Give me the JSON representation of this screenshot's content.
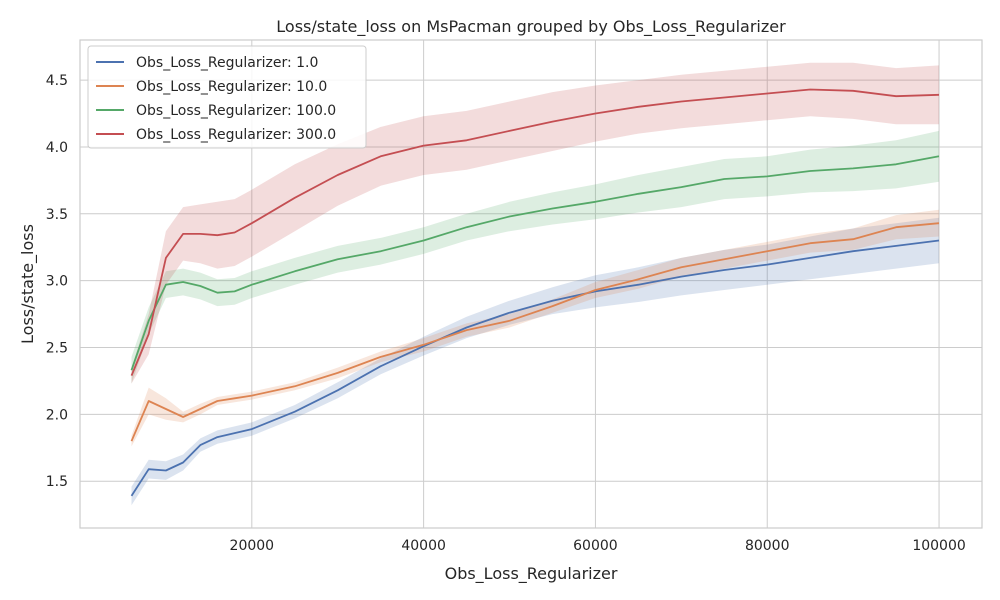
{
  "chart_data": {
    "type": "line",
    "title": "Loss/state_loss on MsPacman grouped by Obs_Loss_Regularizer",
    "xlabel": "Obs_Loss_Regularizer",
    "ylabel": "Loss/state_loss",
    "xlim": [
      0,
      105000
    ],
    "ylim": [
      1.15,
      4.8
    ],
    "xticks": [
      20000,
      40000,
      60000,
      80000,
      100000
    ],
    "xtick_labels": [
      "20000",
      "40000",
      "60000",
      "80000",
      "100000"
    ],
    "yticks": [
      1.5,
      2.0,
      2.5,
      3.0,
      3.5,
      4.0,
      4.5
    ],
    "ytick_labels": [
      "1.5",
      "2.0",
      "2.5",
      "3.0",
      "3.5",
      "4.0",
      "4.5"
    ],
    "grid": true,
    "legend_position": "top-left",
    "x": [
      6000,
      8000,
      10000,
      12000,
      14000,
      16000,
      18000,
      20000,
      25000,
      30000,
      35000,
      40000,
      45000,
      50000,
      55000,
      60000,
      65000,
      70000,
      75000,
      80000,
      85000,
      90000,
      95000,
      100000
    ],
    "series": [
      {
        "name": "Obs_Loss_Regularizer: 1.0",
        "color": "#4c72b0",
        "values": [
          1.39,
          1.59,
          1.58,
          1.64,
          1.77,
          1.83,
          1.86,
          1.89,
          2.02,
          2.18,
          2.36,
          2.51,
          2.65,
          2.76,
          2.85,
          2.92,
          2.97,
          3.03,
          3.08,
          3.12,
          3.17,
          3.22,
          3.26,
          3.3
        ],
        "ci": [
          0.07,
          0.07,
          0.07,
          0.06,
          0.05,
          0.05,
          0.05,
          0.05,
          0.05,
          0.06,
          0.06,
          0.07,
          0.08,
          0.09,
          0.1,
          0.12,
          0.13,
          0.14,
          0.15,
          0.15,
          0.16,
          0.17,
          0.17,
          0.17
        ]
      },
      {
        "name": "Obs_Loss_Regularizer: 10.0",
        "color": "#dd8452",
        "values": [
          1.8,
          2.1,
          2.04,
          1.98,
          2.04,
          2.1,
          2.12,
          2.14,
          2.21,
          2.31,
          2.43,
          2.52,
          2.63,
          2.7,
          2.81,
          2.93,
          3.01,
          3.1,
          3.16,
          3.22,
          3.28,
          3.31,
          3.4,
          3.43
        ],
        "ci": [
          0.04,
          0.1,
          0.08,
          0.04,
          0.04,
          0.03,
          0.03,
          0.03,
          0.03,
          0.04,
          0.04,
          0.05,
          0.05,
          0.05,
          0.05,
          0.06,
          0.07,
          0.07,
          0.07,
          0.07,
          0.07,
          0.08,
          0.09,
          0.1
        ]
      },
      {
        "name": "Obs_Loss_Regularizer: 100.0",
        "color": "#55a868",
        "values": [
          2.33,
          2.7,
          2.97,
          2.99,
          2.96,
          2.91,
          2.92,
          2.97,
          3.07,
          3.16,
          3.22,
          3.3,
          3.4,
          3.48,
          3.54,
          3.59,
          3.65,
          3.7,
          3.76,
          3.78,
          3.82,
          3.84,
          3.87,
          3.93
        ],
        "ci": [
          0.1,
          0.1,
          0.1,
          0.1,
          0.1,
          0.1,
          0.1,
          0.1,
          0.1,
          0.1,
          0.1,
          0.1,
          0.1,
          0.11,
          0.12,
          0.13,
          0.14,
          0.15,
          0.15,
          0.15,
          0.16,
          0.17,
          0.18,
          0.19
        ]
      },
      {
        "name": "Obs_Loss_Regularizer: 300.0",
        "color": "#c44e52",
        "values": [
          2.29,
          2.6,
          3.17,
          3.35,
          3.35,
          3.34,
          3.36,
          3.43,
          3.62,
          3.79,
          3.93,
          4.01,
          4.05,
          4.12,
          4.19,
          4.25,
          4.3,
          4.34,
          4.37,
          4.4,
          4.43,
          4.42,
          4.38,
          4.39
        ],
        "ci": [
          0.06,
          0.15,
          0.2,
          0.2,
          0.22,
          0.25,
          0.25,
          0.25,
          0.25,
          0.23,
          0.22,
          0.22,
          0.22,
          0.22,
          0.22,
          0.21,
          0.2,
          0.2,
          0.2,
          0.2,
          0.2,
          0.21,
          0.21,
          0.22
        ]
      }
    ]
  },
  "colors": {
    "background": "#ffffff",
    "grid": "#cccccc",
    "axes_edge": "#cccccc",
    "text": "#262626"
  }
}
